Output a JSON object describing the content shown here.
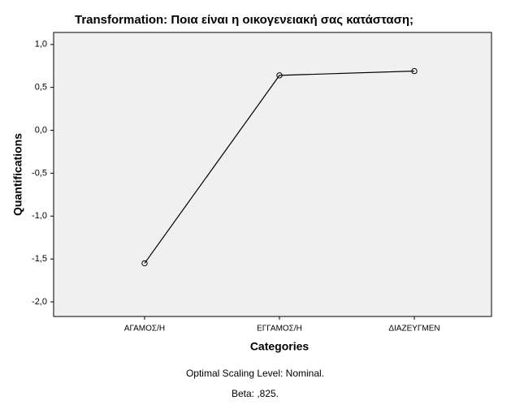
{
  "chart_data": {
    "type": "line",
    "title": "Transformation: Ποια είναι η οικογενειακή σας κατάσταση;",
    "x_label": "Categories",
    "y_label": "Quantifications",
    "categories": [
      "ΑΓΑΜΟΣ/Η",
      "ΕΓΓΑΜΟΣ/Η",
      "ΔΙΑΖΕΥΓΜΕΝ"
    ],
    "values": [
      -1.55,
      0.64,
      0.69
    ],
    "color": "#000000",
    "ylim": [
      -2.17,
      1.14
    ],
    "yticks": [
      {
        "value": 1.0,
        "label": "1,0"
      },
      {
        "value": 0.5,
        "label": "0,5"
      },
      {
        "value": 0,
        "label": "0,0"
      },
      {
        "value": -0.5,
        "label": "-0,5"
      },
      {
        "value": -1.0,
        "label": "-1,0"
      },
      {
        "value": -1.5,
        "label": "-1,5"
      },
      {
        "value": -2.0,
        "label": "-2,0"
      }
    ],
    "footnotes": [
      "Optimal Scaling Level: Nominal.",
      "Beta: ,825."
    ]
  }
}
